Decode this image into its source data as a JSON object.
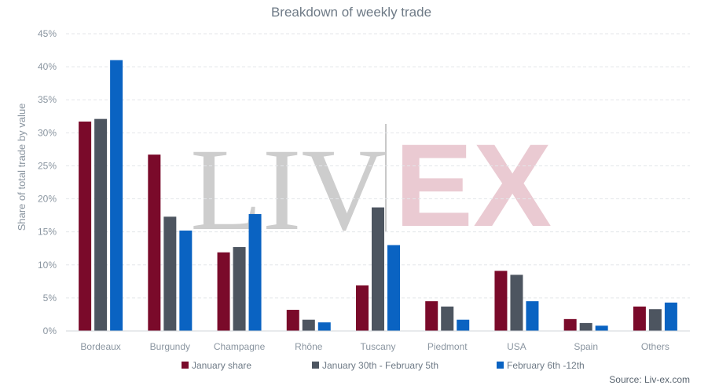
{
  "chart_data": {
    "type": "bar",
    "title": "Breakdown of weekly trade",
    "ylabel": "Share of total trade by value",
    "xlabel": "",
    "ylim": [
      0,
      45
    ],
    "yticks": [
      "0%",
      "5%",
      "10%",
      "15%",
      "20%",
      "25%",
      "30%",
      "35%",
      "40%",
      "45%"
    ],
    "categories": [
      "Bordeaux",
      "Burgundy",
      "Champagne",
      "Rhône",
      "Tuscany",
      "Piedmont",
      "USA",
      "Spain",
      "Others"
    ],
    "series": [
      {
        "name": "January share",
        "color": "#7a0a2a",
        "values": [
          31.7,
          26.7,
          11.9,
          3.2,
          6.9,
          4.5,
          9.1,
          1.8,
          3.7
        ]
      },
      {
        "name": "January 30th - February 5th",
        "color": "#4d5560",
        "values": [
          32.1,
          17.3,
          12.7,
          1.7,
          18.7,
          3.7,
          8.5,
          1.2,
          3.3
        ]
      },
      {
        "name": "February 6th -12th",
        "color": "#0a63c2",
        "values": [
          41.0,
          15.2,
          17.7,
          1.3,
          13.0,
          1.7,
          4.5,
          0.8,
          4.3
        ]
      }
    ],
    "grid": true,
    "legend_position": "bottom"
  },
  "source": "Source: Liv-ex.com",
  "watermark": {
    "left": "LIV",
    "right": "EX",
    "left_color": "#bdbdbd",
    "right_color": "#e3b9c3"
  }
}
